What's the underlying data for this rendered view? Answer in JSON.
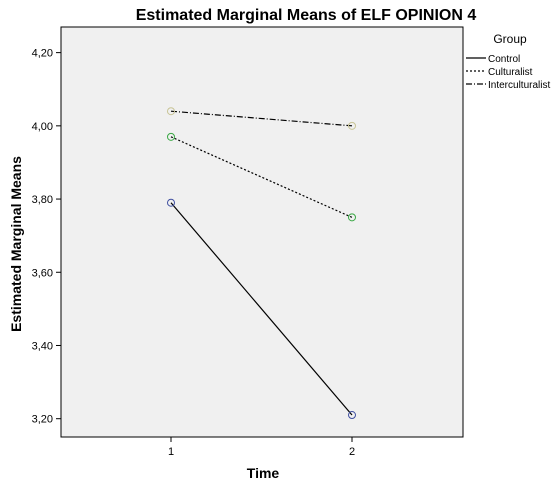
{
  "chart_data": {
    "type": "line",
    "title": "Estimated Marginal Means of ELF OPINION 4",
    "xlabel": "Time",
    "ylabel": "Estimated Marginal Means",
    "categories": [
      "1",
      "2"
    ],
    "ylim": [
      3.15,
      4.27
    ],
    "yticks": [
      "3,20",
      "3,40",
      "3,60",
      "3,80",
      "4,00",
      "4,20"
    ],
    "ytick_values": [
      3.2,
      3.4,
      3.6,
      3.8,
      4.0,
      4.2
    ],
    "grid": false,
    "background": "#f0f0f0",
    "legend": {
      "title": "Group",
      "placement": "right"
    },
    "series": [
      {
        "name": "Control",
        "values": [
          3.79,
          3.21
        ],
        "dash": "solid",
        "marker_color": "#3f4fa0"
      },
      {
        "name": "Culturalist",
        "values": [
          3.97,
          3.75
        ],
        "dash": "dotted",
        "marker_color": "#3aa845"
      },
      {
        "name": "Interculturalist",
        "values": [
          4.04,
          4.0
        ],
        "dash": "dashdot",
        "marker_color": "#c8c496"
      }
    ]
  }
}
